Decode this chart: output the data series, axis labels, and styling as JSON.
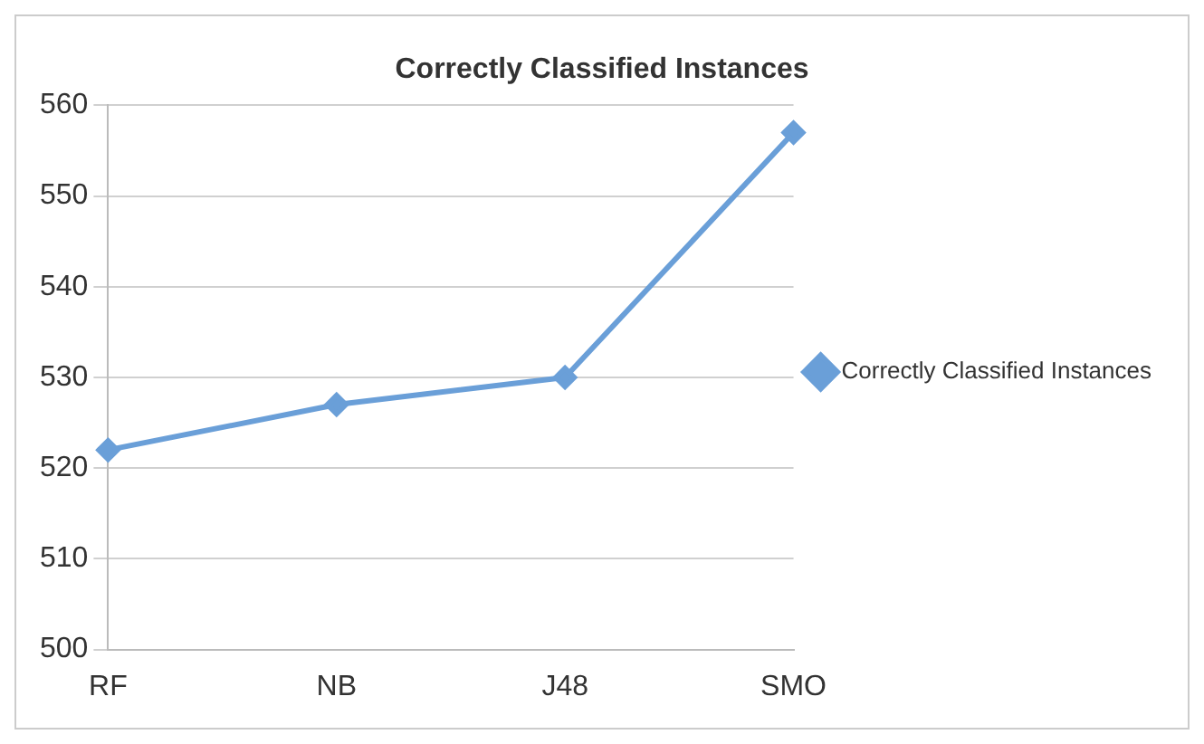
{
  "chart_data": {
    "type": "line",
    "title": "Correctly Classified Instances",
    "categories": [
      "RF",
      "NB",
      "J48",
      "SMO"
    ],
    "series": [
      {
        "name": "Correctly Classified Instances",
        "color": "#6a9fd8",
        "values": [
          522,
          527,
          530,
          557
        ]
      }
    ],
    "ylim": [
      500,
      560
    ],
    "yticks": [
      500,
      510,
      520,
      530,
      540,
      550,
      560
    ],
    "grid": "y",
    "legend": "right",
    "marker": "diamond"
  }
}
